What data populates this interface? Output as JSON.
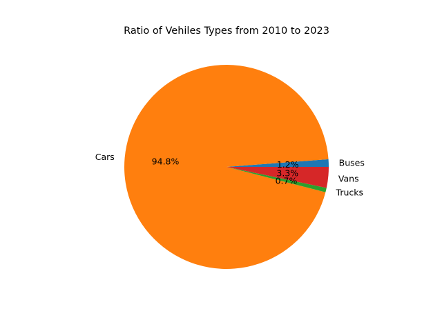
{
  "chart_data": {
    "type": "pie",
    "title": "Ratio of Vehiles Types from 2010 to 2023",
    "slices": [
      {
        "label": "Buses",
        "value": 1.2,
        "pct_label": "1.2%",
        "color": "#1f77b4"
      },
      {
        "label": "Cars",
        "value": 94.8,
        "pct_label": "94.8%",
        "color": "#ff7f0e"
      },
      {
        "label": "Trucks",
        "value": 0.7,
        "pct_label": "0.7%",
        "color": "#2ca02c"
      },
      {
        "label": "Vans",
        "value": 3.3,
        "pct_label": "3.3%",
        "color": "#d62728"
      }
    ],
    "start_angle_deg": 0,
    "direction": "counterclockwise",
    "legend": "none"
  }
}
